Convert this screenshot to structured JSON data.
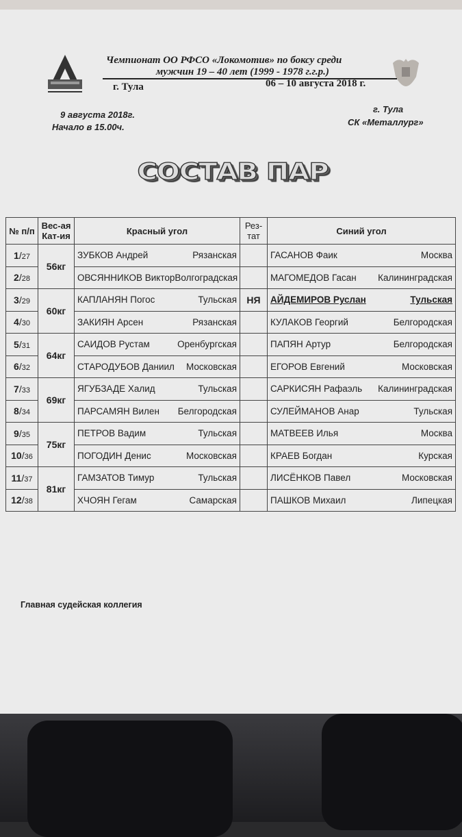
{
  "header": {
    "line1": "Чемпионат ОО РФСО  «Локомотив» по боксу среди",
    "line2": "мужчин 19 – 40 лет (1999 - 1978 г.г.р.)",
    "city": "г. Тула",
    "dates": "06 – 10 августа 2018 г.",
    "logo_text": "Локомотив"
  },
  "info": {
    "date": "9 августа  2018г.",
    "start": "Начало в 15.00ч.",
    "city": "г. Тула",
    "venue": "СК «Металлург»"
  },
  "title": "СОСТАВ ПАР",
  "table": {
    "headers": {
      "num": "№ п/п",
      "weight": "Вес-ая Кат-ия",
      "red": "Красный угол",
      "result": "Рез-тат",
      "blue": "Синий угол"
    },
    "rows": [
      {
        "n": "1",
        "id": "27",
        "weight": "56кг",
        "red_name": "ЗУБКОВ Андрей",
        "red_region": "Рязанская",
        "result": "",
        "blue_name": "ГАСАНОВ Фаик",
        "blue_region": "Москва"
      },
      {
        "n": "2",
        "id": "28",
        "weight": "",
        "red_name": "ОВСЯННИКОВ Виктор",
        "red_region": "Волгоградская",
        "result": "",
        "blue_name": "МАГОМЕДОВ Гасан",
        "blue_region": "Калининградская"
      },
      {
        "n": "3",
        "id": "29",
        "weight": "60кг",
        "red_name": "КАПЛАНЯН Погос",
        "red_region": "Тульская",
        "result": "НЯ",
        "blue_name": "АЙДЕМИРОВ Руслан",
        "blue_region": "Тульская",
        "winner": "blue"
      },
      {
        "n": "4",
        "id": "30",
        "weight": "",
        "red_name": "ЗАКИЯН Арсен",
        "red_region": "Рязанская",
        "result": "",
        "blue_name": "КУЛАКОВ Георгий",
        "blue_region": "Белгородская"
      },
      {
        "n": "5",
        "id": "31",
        "weight": "64кг",
        "red_name": "САИДОВ Рустам",
        "red_region": "Оренбургская",
        "result": "",
        "blue_name": "ПАПЯН Артур",
        "blue_region": "Белгородская"
      },
      {
        "n": "6",
        "id": "32",
        "weight": "",
        "red_name": "СТАРОДУБОВ Даниил",
        "red_region": "Московская",
        "result": "",
        "blue_name": "ЕГОРОВ Евгений",
        "blue_region": "Московская"
      },
      {
        "n": "7",
        "id": "33",
        "weight": "69кг",
        "red_name": "ЯГУБЗАДЕ Халид",
        "red_region": "Тульская",
        "result": "",
        "blue_name": "САРКИСЯН Рафаэль",
        "blue_region": "Калининградская"
      },
      {
        "n": "8",
        "id": "34",
        "weight": "",
        "red_name": "ПАРСАМЯН Вилен",
        "red_region": "Белгородская",
        "result": "",
        "blue_name": "СУЛЕЙМАНОВ Анар",
        "blue_region": "Тульская"
      },
      {
        "n": "9",
        "id": "35",
        "weight": "75кг",
        "red_name": "ПЕТРОВ Вадим",
        "red_region": "Тульская",
        "result": "",
        "blue_name": "МАТВЕЕВ Илья",
        "blue_region": "Москва"
      },
      {
        "n": "10",
        "id": "36",
        "weight": "",
        "red_name": "ПОГОДИН Денис",
        "red_region": "Московская",
        "result": "",
        "blue_name": "КРАЕВ Богдан",
        "blue_region": "Курская"
      },
      {
        "n": "11",
        "id": "37",
        "weight": "81кг",
        "red_name": "ГАМЗАТОВ Тимур",
        "red_region": "Тульская",
        "result": "",
        "blue_name": "ЛИСЁНКОВ Павел",
        "blue_region": "Московская"
      },
      {
        "n": "12",
        "id": "38",
        "weight": "",
        "red_name": "ХЧОЯН Гегам",
        "red_region": "Самарская",
        "result": "",
        "blue_name": "ПАШКОВ Михаил",
        "blue_region": "Липецкая"
      }
    ]
  },
  "footer": "Главная судейская коллегия"
}
